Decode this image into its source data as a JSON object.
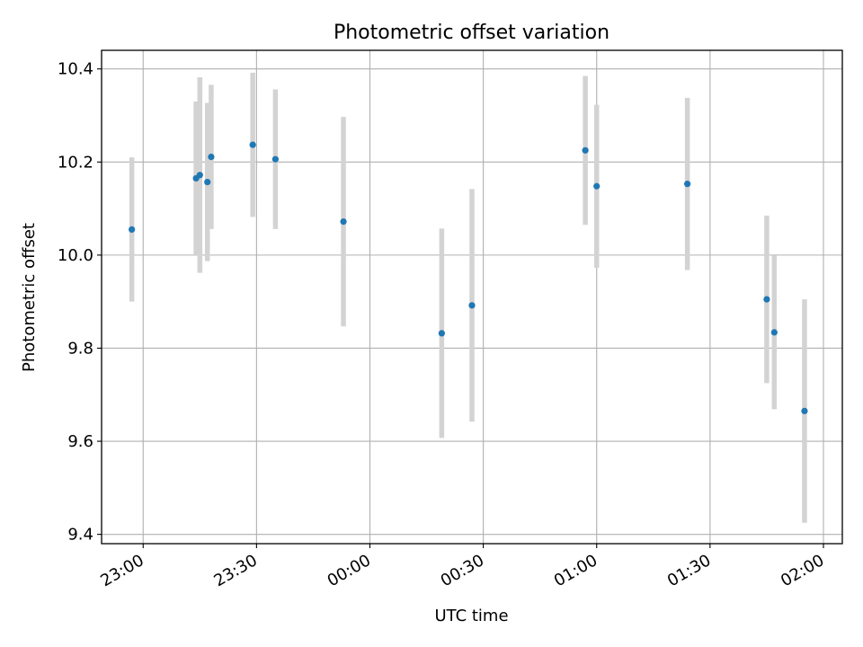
{
  "chart_data": {
    "type": "scatter",
    "title": "Photometric offset variation",
    "xlabel": "UTC time",
    "ylabel": "Photometric offset",
    "x_tick_labels": [
      "23:00",
      "23:30",
      "00:00",
      "00:30",
      "01:00",
      "01:30",
      "02:00"
    ],
    "y_tick_labels": [
      "9.4",
      "9.6",
      "9.8",
      "10.0",
      "10.2",
      "10.4"
    ],
    "x_ticks": [
      "22:00+60",
      "22:00+90",
      "22:00+120",
      "22:00+150",
      "22:00+180",
      "22:00+210",
      "22:00+240"
    ],
    "xlim": [
      "22:49",
      "02:05"
    ],
    "ylim": [
      9.38,
      10.44
    ],
    "y_ticks": [
      9.4,
      9.6,
      9.8,
      10.0,
      10.2,
      10.4
    ],
    "grid": true,
    "marker_color": "#1f77b4",
    "errorbar_color": "#d3d3d3",
    "points": [
      {
        "time": "22:57",
        "y": 10.055,
        "err": 0.155
      },
      {
        "time": "23:14",
        "y": 10.165,
        "err": 0.165
      },
      {
        "time": "23:15",
        "y": 10.172,
        "err": 0.21
      },
      {
        "time": "23:17",
        "y": 10.157,
        "err": 0.17
      },
      {
        "time": "23:18",
        "y": 10.211,
        "err": 0.155
      },
      {
        "time": "23:29",
        "y": 10.237,
        "err": 0.155
      },
      {
        "time": "23:35",
        "y": 10.206,
        "err": 0.15
      },
      {
        "time": "23:53",
        "y": 10.072,
        "err": 0.225
      },
      {
        "time": "00:19",
        "y": 9.832,
        "err": 0.225
      },
      {
        "time": "00:27",
        "y": 9.892,
        "err": 0.25
      },
      {
        "time": "00:57",
        "y": 10.225,
        "err": 0.16
      },
      {
        "time": "01:00",
        "y": 10.148,
        "err": 0.175
      },
      {
        "time": "01:24",
        "y": 10.153,
        "err": 0.185
      },
      {
        "time": "01:45",
        "y": 9.905,
        "err": 0.18
      },
      {
        "time": "01:47",
        "y": 9.834,
        "err": 0.165
      },
      {
        "time": "01:55",
        "y": 9.665,
        "err": 0.24
      }
    ]
  }
}
